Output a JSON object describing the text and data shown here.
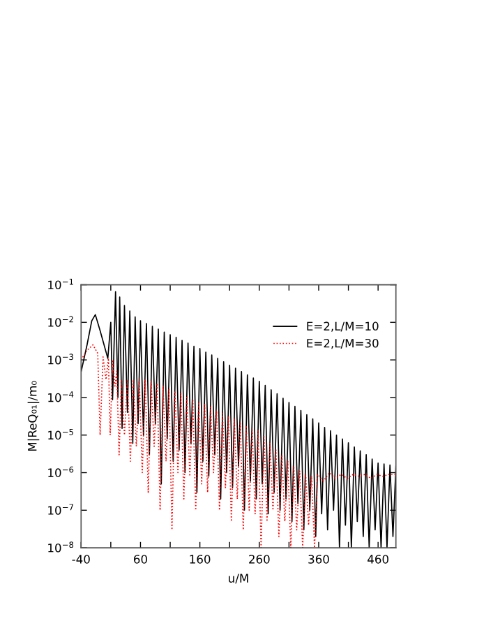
{
  "chart_data": {
    "type": "line",
    "xlabel": "u/M",
    "ylabel": "M|ReQ₀₁|/m₀",
    "log": "y",
    "grid": false,
    "legend": "top right",
    "xlim": [
      -40,
      490
    ],
    "ylim": [
      1e-08,
      0.1
    ],
    "xticks": [
      -40,
      {
        "value": 10,
        "label": null
      },
      60,
      {
        "value": 110,
        "label": null
      },
      160,
      {
        "value": 210,
        "label": null
      },
      260,
      {
        "value": 310,
        "label": null
      },
      360,
      {
        "value": 410,
        "label": null
      },
      460
    ],
    "yticks": [
      {
        "value": 1e-08,
        "label": "10$^{−8}$"
      },
      {
        "value": 1e-07,
        "label": "10$^{−7}$"
      },
      {
        "value": 1e-06,
        "label": "10$^{−6}$"
      },
      {
        "value": 1e-05,
        "label": "10$^{−5}$"
      },
      {
        "value": 0.0001,
        "label": "10$^{−4}$"
      },
      {
        "value": 0.001,
        "label": "10$^{−3}$"
      },
      {
        "value": 0.01,
        "label": "10$^{−2}$"
      },
      {
        "value": 0.1,
        "label": "10$^{−1}$"
      }
    ],
    "series": [
      {
        "name": "E=2,L/M=10",
        "color": "#000000",
        "line_style": "solid",
        "x": [
          -40,
          -30,
          -22,
          -16,
          -8,
          5,
          10,
          13,
          18,
          22,
          25,
          29,
          33,
          38,
          42,
          47,
          51,
          56,
          60,
          65,
          70,
          75,
          80,
          85,
          90,
          95,
          100,
          105,
          110,
          115,
          120,
          125,
          130,
          135,
          140,
          145,
          150,
          155,
          160,
          165,
          170,
          175,
          180,
          185,
          190,
          195,
          200,
          205,
          210,
          215,
          220,
          225,
          230,
          235,
          240,
          245,
          250,
          255,
          260,
          265,
          270,
          275,
          280,
          285,
          290,
          295,
          300,
          305,
          310,
          315,
          320,
          325,
          330,
          335,
          340,
          345,
          350,
          355,
          360,
          365,
          370,
          375,
          380,
          385,
          390,
          395,
          400,
          405,
          410,
          415,
          420,
          425,
          430,
          435,
          440,
          445,
          450,
          455,
          460,
          465,
          470,
          475,
          480,
          485,
          490
        ],
        "values": [
          0.00048,
          0.0025,
          0.011,
          0.016,
          0.006,
          0.0011,
          0.01,
          8.7e-05,
          0.065,
          0.0001,
          0.047,
          1.5e-05,
          0.028,
          4e-05,
          0.02,
          6e-06,
          0.014,
          2e-05,
          0.011,
          1e-05,
          0.0093,
          3e-06,
          0.0078,
          2e-05,
          0.0066,
          5e-07,
          0.0055,
          8e-06,
          0.0047,
          2e-06,
          0.004,
          4e-06,
          0.0033,
          1e-06,
          0.0028,
          6e-06,
          0.0023,
          3e-07,
          0.002,
          2e-06,
          0.0016,
          8e-07,
          0.00135,
          3e-06,
          0.0011,
          2e-07,
          0.00089,
          1e-06,
          0.00072,
          4e-07,
          0.0006,
          1.5e-06,
          0.00049,
          1e-07,
          0.0004,
          6e-07,
          0.00033,
          2e-07,
          0.00027,
          5e-07,
          0.00021,
          8e-08,
          0.00016,
          3e-07,
          0.000126,
          1e-07,
          9.5e-05,
          2e-07,
          7.4e-05,
          5e-08,
          5.8e-05,
          1.5e-07,
          4.5e-05,
          3e-08,
          3.5e-05,
          1e-07,
          2.7e-05,
          2e-08,
          2.1e-05,
          8e-08,
          1.6e-05,
          3e-08,
          1.3e-05,
          1e-07,
          1e-05,
          1e-08,
          7.9e-06,
          4e-08,
          6.2e-06,
          1e-08,
          4.8e-06,
          5e-08,
          3.8e-06,
          2e-08,
          3e-06,
          1e-08,
          2.3e-06,
          3e-08,
          1.8e-06,
          1e-08,
          1.7e-06,
          1e-08,
          1.6e-06,
          2e-08,
          1.5e-06
        ]
      },
      {
        "name": "E=2,L/M=30",
        "color": "#ff0000",
        "line_style": "dotted",
        "x": [
          -40,
          -30,
          -20,
          -12,
          -8,
          -3,
          2,
          6,
          9,
          13,
          17,
          20,
          24,
          28,
          33,
          38,
          43,
          48,
          53,
          58,
          63,
          68,
          73,
          78,
          83,
          88,
          93,
          98,
          103,
          108,
          113,
          118,
          123,
          128,
          133,
          138,
          143,
          148,
          153,
          158,
          163,
          168,
          173,
          178,
          183,
          188,
          193,
          198,
          203,
          208,
          213,
          218,
          223,
          228,
          233,
          238,
          243,
          248,
          253,
          258,
          263,
          268,
          273,
          278,
          283,
          288,
          293,
          298,
          303,
          308,
          313,
          318,
          323,
          328,
          333,
          338,
          343,
          348,
          353,
          358,
          368,
          378,
          388,
          398,
          408,
          418,
          428,
          438,
          448,
          458,
          468,
          478,
          490
        ],
        "values": [
          0.001,
          0.0018,
          0.0025,
          0.0015,
          1e-05,
          0.0012,
          0.0003,
          0.0011,
          1e-05,
          0.001,
          0.0002,
          0.0005,
          3e-06,
          0.0003,
          1e-05,
          0.0003,
          2e-06,
          0.0003,
          5e-06,
          0.0003,
          1e-06,
          0.0003,
          3e-07,
          0.00027,
          5e-06,
          0.00024,
          1e-07,
          0.0002,
          2e-06,
          0.00017,
          3e-08,
          0.00015,
          1e-06,
          0.00013,
          2e-07,
          0.00011,
          8e-07,
          9e-05,
          1e-07,
          7.5e-05,
          5e-07,
          6.5e-05,
          3e-07,
          5.5e-05,
          1e-06,
          4.5e-05,
          1e-07,
          3.8e-05,
          4e-07,
          3.2e-05,
          5e-08,
          2.7e-05,
          2e-07,
          2.2e-05,
          3e-08,
          1.8e-05,
          1e-07,
          1.5e-05,
          8e-08,
          1.3e-05,
          1e-08,
          9e-06,
          5e-08,
          6e-06,
          1e-07,
          4e-06,
          2e-08,
          3e-06,
          5e-08,
          2e-06,
          1e-08,
          1.5e-06,
          3e-08,
          1.1e-06,
          1e-08,
          9e-07,
          4e-08,
          8e-07,
          1e-08,
          9e-07,
          6e-07,
          1e-06,
          7e-07,
          9e-07,
          7e-07,
          9e-07,
          8e-07,
          9e-07,
          7e-07,
          9e-07,
          8e-07,
          9e-07,
          9e-07
        ]
      }
    ]
  }
}
